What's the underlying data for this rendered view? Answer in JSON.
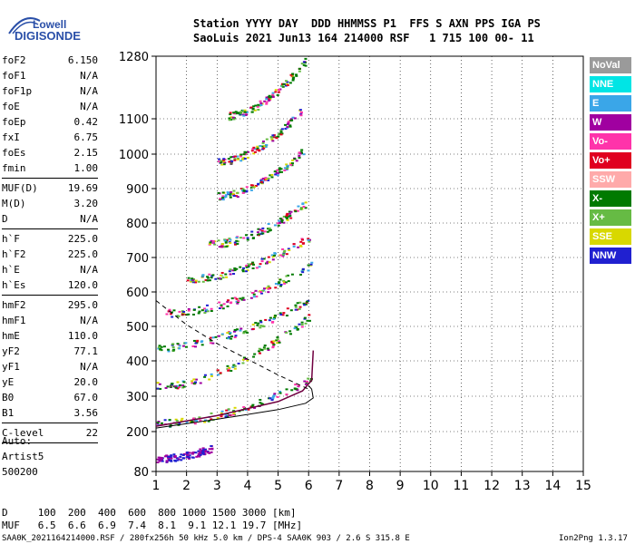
{
  "logo": {
    "line1": "Lowell",
    "line2": "DIGISONDE"
  },
  "header": {
    "row1": "Station YYYY DAY  DDD HHMMSS P1  FFS S AXN PPS IGA PS",
    "row2": "SaoLuis 2021 Jun13 164 214000 RSF   1 715 100 00- 11"
  },
  "params": [
    {
      "name": "foF2",
      "value": "6.150"
    },
    {
      "name": "foF1",
      "value": "N/A"
    },
    {
      "name": "foF1p",
      "value": "N/A"
    },
    {
      "name": "foE",
      "value": "N/A"
    },
    {
      "name": "foEp",
      "value": "0.42"
    },
    {
      "name": "fxI",
      "value": "6.75"
    },
    {
      "name": "foEs",
      "value": "2.15"
    },
    {
      "name": "fmin",
      "value": "1.00"
    },
    {
      "name": "MUF(D)",
      "value": "19.69",
      "sep": true
    },
    {
      "name": "M(D)",
      "value": "3.20"
    },
    {
      "name": "D",
      "value": "N/A"
    },
    {
      "name": "h`F",
      "value": "225.0",
      "sep": true
    },
    {
      "name": "h`F2",
      "value": "225.0"
    },
    {
      "name": "h`E",
      "value": "N/A"
    },
    {
      "name": "h`Es",
      "value": "120.0"
    },
    {
      "name": "hmF2",
      "value": "295.0",
      "sep": true
    },
    {
      "name": "hmF1",
      "value": "N/A"
    },
    {
      "name": "hmE",
      "value": "110.0"
    },
    {
      "name": "yF2",
      "value": "77.1"
    },
    {
      "name": "yF1",
      "value": "N/A"
    },
    {
      "name": "yE",
      "value": "20.0"
    },
    {
      "name": "B0",
      "value": "67.0"
    },
    {
      "name": "B1",
      "value": "3.56"
    },
    {
      "name": "C-level",
      "value": "22",
      "sep": true
    }
  ],
  "auto": {
    "l1": "Auto:",
    "l2": "Artist5",
    "l3": "500200"
  },
  "legend": [
    {
      "label": "NoVal",
      "color": "#9a9a9a"
    },
    {
      "label": "NNE",
      "color": "#00e5e5"
    },
    {
      "label": "E",
      "color": "#3aa6e8"
    },
    {
      "label": "W",
      "color": "#a000a0"
    },
    {
      "label": "Vo-",
      "color": "#ff33aa"
    },
    {
      "label": "Vo+",
      "color": "#e00020"
    },
    {
      "label": "SSW",
      "color": "#ffaaaa"
    },
    {
      "label": "X-",
      "color": "#007a00"
    },
    {
      "label": "X+",
      "color": "#66bb44"
    },
    {
      "label": "SSE",
      "color": "#d8d800"
    },
    {
      "label": "NNW",
      "color": "#2020d0"
    }
  ],
  "footer": {
    "distance_row": "D     100  200  400  600  800 1000 1500 3000 [km]",
    "muf_row": "MUF   6.5  6.6  6.9  7.4  8.1  9.1 12.1 19.7 [MHz]",
    "file_line": "SAA0K_2021164214000.RSF / 280fx256h 50 kHz 5.0 km / DPS-4 SAA0K 903 / 2.6 S 315.8 E",
    "version": "Ion2Png 1.3.17"
  },
  "chart_data": {
    "type": "scatter",
    "title": "",
    "xlabel": "",
    "ylabel": "",
    "xlim": [
      1,
      15
    ],
    "ylim": [
      80,
      1280
    ],
    "x_ticks": [
      1,
      2,
      3,
      4,
      5,
      6,
      7,
      8,
      9,
      10,
      11,
      12,
      13,
      14,
      15
    ],
    "y_ticks": [
      80,
      200,
      300,
      400,
      500,
      600,
      700,
      800,
      900,
      1000,
      1100,
      1280
    ],
    "trace_bands": [
      {
        "f_start": 1.0,
        "h_start": 225,
        "f_end": 6.1,
        "h_end": 350
      },
      {
        "f_start": 1.0,
        "h_start": 330,
        "f_end": 6.0,
        "h_end": 530
      },
      {
        "f_start": 1.0,
        "h_start": 440,
        "f_end": 6.0,
        "h_end": 580
      },
      {
        "f_start": 1.3,
        "h_start": 540,
        "f_end": 6.1,
        "h_end": 680
      },
      {
        "f_start": 2.0,
        "h_start": 640,
        "f_end": 6.0,
        "h_end": 760
      },
      {
        "f_start": 2.7,
        "h_start": 740,
        "f_end": 5.9,
        "h_end": 860
      },
      {
        "f_start": 3.0,
        "h_start": 880,
        "f_end": 5.8,
        "h_end": 1010
      },
      {
        "f_start": 3.0,
        "h_start": 980,
        "f_end": 5.8,
        "h_end": 1130
      },
      {
        "f_start": 3.3,
        "h_start": 1110,
        "f_end": 5.9,
        "h_end": 1270
      },
      {
        "f_start": 1.0,
        "h_start": 120,
        "f_end": 2.8,
        "h_end": 150
      }
    ],
    "profile_curve": [
      [
        1.0,
        210
      ],
      [
        3.0,
        235
      ],
      [
        5.0,
        262
      ],
      [
        5.9,
        280
      ],
      [
        6.15,
        295
      ],
      [
        6.1,
        320
      ],
      [
        6.0,
        330
      ]
    ],
    "model_curve": [
      [
        1.0,
        215
      ],
      [
        3.0,
        245
      ],
      [
        5.0,
        285
      ],
      [
        5.8,
        315
      ],
      [
        6.1,
        345
      ],
      [
        6.15,
        430
      ]
    ],
    "dashed_curve": [
      [
        1.0,
        575
      ],
      [
        2.0,
        505
      ],
      [
        3.0,
        450
      ],
      [
        4.0,
        405
      ],
      [
        5.0,
        360
      ],
      [
        6.0,
        320
      ]
    ]
  }
}
